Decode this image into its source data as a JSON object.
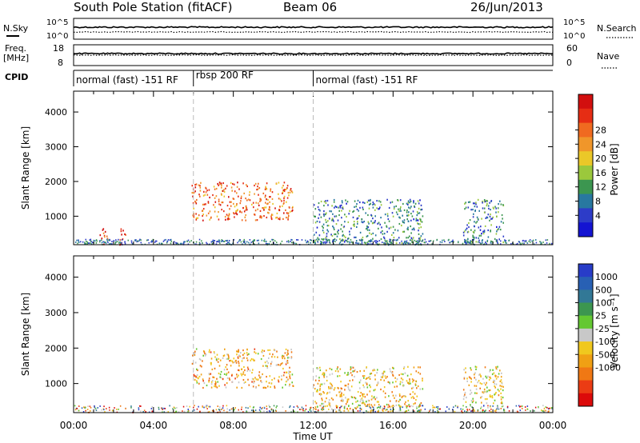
{
  "header": {
    "station": "South Pole Station (fitACF)",
    "beam": "Beam 06",
    "date": "26/Jun/2013"
  },
  "strip": {
    "nsky_label": "N.Sky",
    "nsearch_label": "N.Search",
    "nsky_ticks": [
      "10^5",
      "10^0"
    ],
    "nsearch_ticks": [
      "10^5",
      "10^0"
    ],
    "freq_label_1": "Freq.",
    "freq_label_2": "[MHz]",
    "freq_ticks": [
      "18",
      "8"
    ],
    "nave_label": "Nave",
    "nave_ticks": [
      "60",
      "0"
    ],
    "cpid_label": "CPID",
    "cpid_segments": [
      {
        "label": "normal (fast) -151 RF",
        "start_hour": 0,
        "end_hour": 6
      },
      {
        "label": "rbsp 200 RF",
        "start_hour": 6,
        "end_hour": 12
      },
      {
        "label": "normal (fast) -151 RF",
        "start_hour": 12,
        "end_hour": 24
      }
    ]
  },
  "axes": {
    "ylabel": "Slant Range [km]",
    "xlabel": "Time UT",
    "y_ticks": [
      "1000",
      "2000",
      "3000",
      "4000"
    ],
    "x_ticks": [
      "00:00",
      "04:00",
      "08:00",
      "12:00",
      "16:00",
      "20:00",
      "00:00"
    ]
  },
  "power_bar": {
    "label": "Power [dB]",
    "ticks": [
      "4",
      "8",
      "12",
      "16",
      "20",
      "24",
      "28"
    ],
    "colors": [
      "#1414d2",
      "#2d3cc8",
      "#2878a0",
      "#3c9650",
      "#9bc83c",
      "#ebc828",
      "#f0962a",
      "#f06a20",
      "#e62d14",
      "#d20f0f"
    ]
  },
  "velocity_bar": {
    "label": "Velocity [m s⁻¹]",
    "ticks": [
      "1000",
      "500",
      "100",
      "25",
      "-25",
      "-100",
      "-500",
      "-1000"
    ],
    "colors": [
      "#283cc8",
      "#2860b4",
      "#327896",
      "#3c9650",
      "#64c832",
      "#c8c8c8",
      "#f0c81e",
      "#f0a014",
      "#f07814",
      "#eb3c14",
      "#dc0a0a"
    ]
  },
  "chart_data": [
    {
      "type": "heatmap",
      "title": "Power",
      "xlabel": "Time UT",
      "ylabel": "Slant Range [km]",
      "xlim": [
        0,
        24
      ],
      "ylim": [
        180,
        4600
      ],
      "colorbar": "Power [dB]",
      "clim": [
        0,
        31
      ],
      "features": [
        {
          "t_start": 1.3,
          "t_end": 1.7,
          "r_min": 200,
          "r_max": 700,
          "level": 28
        },
        {
          "t_start": 2.2,
          "t_end": 2.6,
          "r_min": 200,
          "r_max": 700,
          "level": 28
        },
        {
          "t_start": 5.9,
          "t_end": 11.0,
          "r_min": 900,
          "r_max": 2000,
          "level": 24
        },
        {
          "t_start": 12.0,
          "t_end": 17.5,
          "r_min": 200,
          "r_max": 1500,
          "level": 8
        },
        {
          "t_start": 19.5,
          "t_end": 21.5,
          "r_min": 200,
          "r_max": 1500,
          "level": 8
        }
      ]
    },
    {
      "type": "heatmap",
      "title": "Velocity",
      "xlabel": "Time UT",
      "ylabel": "Slant Range [km]",
      "xlim": [
        0,
        24
      ],
      "ylim": [
        180,
        4600
      ],
      "colorbar": "Velocity [m s⁻¹]",
      "clim": [
        -1000,
        1000
      ],
      "features": [
        {
          "t_start": 5.9,
          "t_end": 11.0,
          "r_min": 900,
          "r_max": 2000,
          "level": -300
        },
        {
          "t_start": 12.0,
          "t_end": 17.5,
          "r_min": 200,
          "r_max": 1500,
          "level": -200
        },
        {
          "t_start": 19.5,
          "t_end": 21.5,
          "r_min": 200,
          "r_max": 1500,
          "level": -150
        }
      ]
    }
  ]
}
